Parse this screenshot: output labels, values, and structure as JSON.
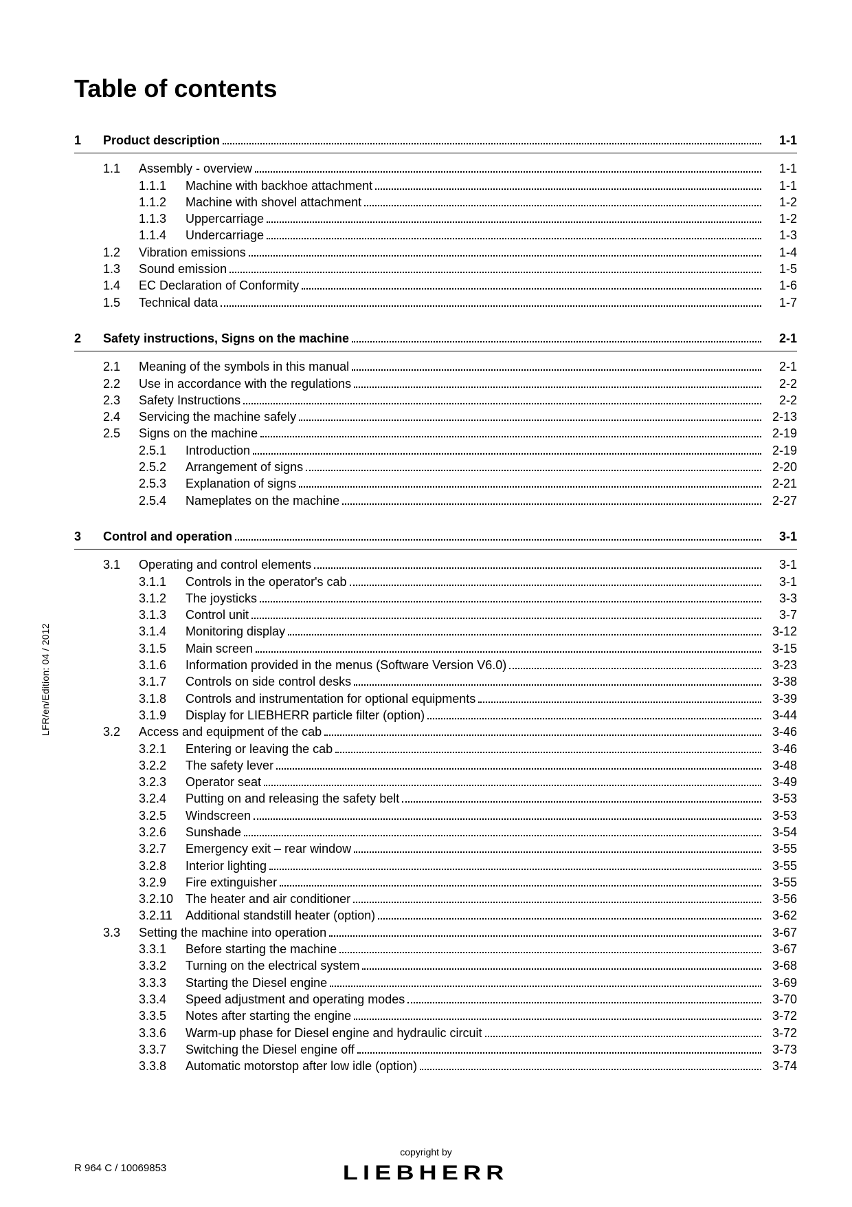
{
  "title": "Table of contents",
  "side_text": "LFR/en/Edition: 04 / 2012",
  "doc_id": "R 964 C / 10069853",
  "copyright": "copyright by",
  "brand": "LIEBHERR",
  "sections": [
    {
      "num": "1",
      "title": "Product description",
      "page": "1-1",
      "items": [
        {
          "num": "1.1",
          "title": "Assembly - overview",
          "page": "1-1",
          "children": [
            {
              "num": "1.1.1",
              "title": "Machine with backhoe attachment",
              "page": "1-1"
            },
            {
              "num": "1.1.2",
              "title": "Machine with shovel attachment",
              "page": "1-2"
            },
            {
              "num": "1.1.3",
              "title": "Uppercarriage",
              "page": "1-2"
            },
            {
              "num": "1.1.4",
              "title": "Undercarriage",
              "page": "1-3"
            }
          ]
        },
        {
          "num": "1.2",
          "title": "Vibration emissions",
          "page": "1-4"
        },
        {
          "num": "1.3",
          "title": "Sound emission",
          "page": "1-5"
        },
        {
          "num": "1.4",
          "title": "EC Declaration of Conformity",
          "page": "1-6"
        },
        {
          "num": "1.5",
          "title": "Technical data",
          "page": "1-7"
        }
      ]
    },
    {
      "num": "2",
      "title": "Safety instructions, Signs on the machine",
      "page": "2-1",
      "items": [
        {
          "num": "2.1",
          "title": "Meaning of the symbols in this manual",
          "page": "2-1"
        },
        {
          "num": "2.2",
          "title": "Use in accordance with the regulations",
          "page": "2-2"
        },
        {
          "num": "2.3",
          "title": "Safety Instructions",
          "page": "2-2"
        },
        {
          "num": "2.4",
          "title": "Servicing the machine safely",
          "page": "2-13"
        },
        {
          "num": "2.5",
          "title": "Signs on the machine",
          "page": "2-19",
          "children": [
            {
              "num": "2.5.1",
              "title": "Introduction",
              "page": "2-19"
            },
            {
              "num": "2.5.2",
              "title": "Arrangement of signs",
              "page": "2-20"
            },
            {
              "num": "2.5.3",
              "title": "Explanation of signs",
              "page": "2-21"
            },
            {
              "num": "2.5.4",
              "title": "Nameplates on the machine",
              "page": "2-27"
            }
          ]
        }
      ]
    },
    {
      "num": "3",
      "title": "Control and operation",
      "page": "3-1",
      "items": [
        {
          "num": "3.1",
          "title": "Operating and control elements",
          "page": "3-1",
          "children": [
            {
              "num": "3.1.1",
              "title": "Controls in the operator's cab",
              "page": "3-1"
            },
            {
              "num": "3.1.2",
              "title": "The joysticks",
              "page": "3-3"
            },
            {
              "num": "3.1.3",
              "title": "Control unit",
              "page": "3-7"
            },
            {
              "num": "3.1.4",
              "title": "Monitoring display",
              "page": "3-12"
            },
            {
              "num": "3.1.5",
              "title": "Main screen",
              "page": "3-15"
            },
            {
              "num": "3.1.6",
              "title": "Information provided in the menus (Software Version V6.0)",
              "page": "3-23"
            },
            {
              "num": "3.1.7",
              "title": "Controls on side control desks",
              "page": "3-38"
            },
            {
              "num": "3.1.8",
              "title": "Controls and instrumentation for optional equipments",
              "page": "3-39"
            },
            {
              "num": "3.1.9",
              "title": "Display for LIEBHERR particle filter (option)",
              "page": "3-44"
            }
          ]
        },
        {
          "num": "3.2",
          "title": "Access and equipment of the cab",
          "page": "3-46",
          "children": [
            {
              "num": "3.2.1",
              "title": "Entering or leaving the cab",
              "page": "3-46"
            },
            {
              "num": "3.2.2",
              "title": "The safety lever",
              "page": "3-48"
            },
            {
              "num": "3.2.3",
              "title": "Operator seat",
              "page": "3-49"
            },
            {
              "num": "3.2.4",
              "title": "Putting on and releasing the safety belt",
              "page": "3-53"
            },
            {
              "num": "3.2.5",
              "title": "Windscreen",
              "page": "3-53"
            },
            {
              "num": "3.2.6",
              "title": "Sunshade",
              "page": "3-54"
            },
            {
              "num": "3.2.7",
              "title": "Emergency exit – rear window",
              "page": "3-55"
            },
            {
              "num": "3.2.8",
              "title": "Interior lighting",
              "page": "3-55"
            },
            {
              "num": "3.2.9",
              "title": "Fire extinguisher",
              "page": "3-55"
            },
            {
              "num": "3.2.10",
              "title": "The heater and air conditioner",
              "page": "3-56"
            },
            {
              "num": "3.2.11",
              "title": "Additional standstill heater (option)",
              "page": "3-62"
            }
          ]
        },
        {
          "num": "3.3",
          "title": "Setting the machine into operation",
          "page": "3-67",
          "children": [
            {
              "num": "3.3.1",
              "title": "Before starting the machine",
              "page": "3-67"
            },
            {
              "num": "3.3.2",
              "title": "Turning on the electrical system",
              "page": "3-68"
            },
            {
              "num": "3.3.3",
              "title": "Starting the Diesel engine",
              "page": "3-69"
            },
            {
              "num": "3.3.4",
              "title": "Speed adjustment and operating modes",
              "page": "3-70"
            },
            {
              "num": "3.3.5",
              "title": "Notes after starting the engine",
              "page": "3-72"
            },
            {
              "num": "3.3.6",
              "title": "Warm-up phase for Diesel engine and hydraulic circuit",
              "page": "3-72"
            },
            {
              "num": "3.3.7",
              "title": "Switching the Diesel engine off",
              "page": "3-73"
            },
            {
              "num": "3.3.8",
              "title": "Automatic motorstop after low idle (option)",
              "page": "3-74"
            }
          ]
        }
      ]
    }
  ]
}
